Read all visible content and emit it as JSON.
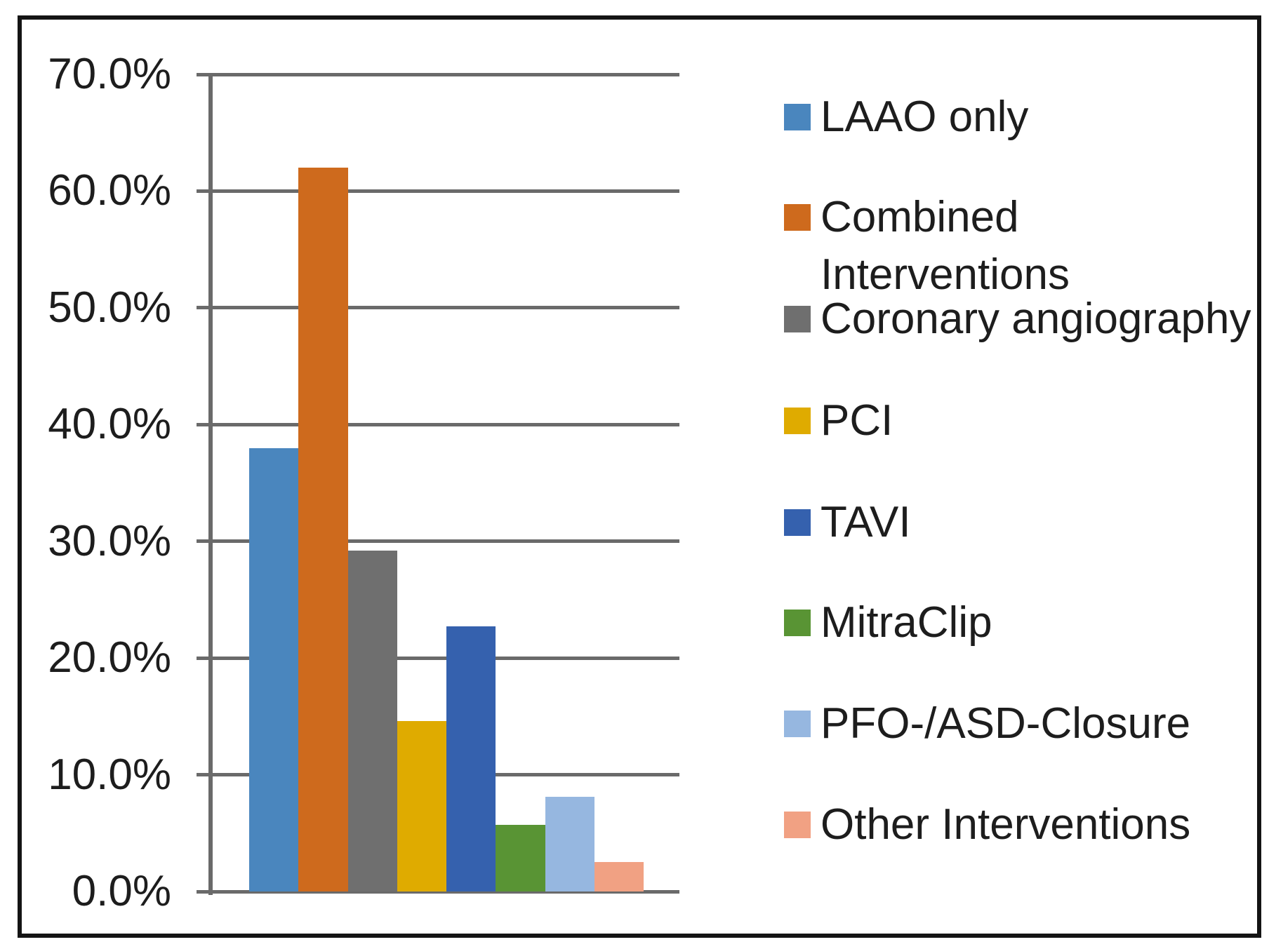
{
  "figure": {
    "background": "#ffffff",
    "border_color": "#141414",
    "gridline_color": "#6a6a6a",
    "text_color": "#1d1d1d"
  },
  "chart_data": {
    "type": "bar",
    "title": "",
    "xlabel": "",
    "ylabel": "",
    "categories": [
      "LAAO only",
      "Combined Interventions",
      "Coronary angiography",
      "PCI",
      "TAVI",
      "MitraClip",
      "PFO-/ASD-Closure",
      "Other Interventions"
    ],
    "values": [
      38.0,
      62.0,
      29.2,
      14.6,
      22.7,
      5.7,
      8.1,
      2.5
    ],
    "colors": [
      "#4A86BE",
      "#CE6A1D",
      "#6F6F6F",
      "#DFAB00",
      "#3561AE",
      "#599434",
      "#96B7E0",
      "#F1A183"
    ],
    "y_tick_labels": [
      "70.0%",
      "60.0%",
      "50.0%",
      "40.0%",
      "30.0%",
      "20.0%",
      "10.0%",
      "0.0%"
    ],
    "ylim": [
      0,
      70
    ],
    "grid": true,
    "legend_position": "right"
  },
  "legend": {
    "items": [
      {
        "label": "LAAO only",
        "color": "#4A86BE"
      },
      {
        "label": "Combined Interventions",
        "color": "#CE6A1D"
      },
      {
        "label": "Coronary angiography",
        "color": "#6F6F6F"
      },
      {
        "label": "PCI",
        "color": "#DFAB00"
      },
      {
        "label": "TAVI",
        "color": "#3561AE"
      },
      {
        "label": "MitraClip",
        "color": "#599434"
      },
      {
        "label": "PFO-/ASD-Closure",
        "color": "#96B7E0"
      },
      {
        "label": "Other Interventions",
        "color": "#F1A183"
      }
    ]
  }
}
